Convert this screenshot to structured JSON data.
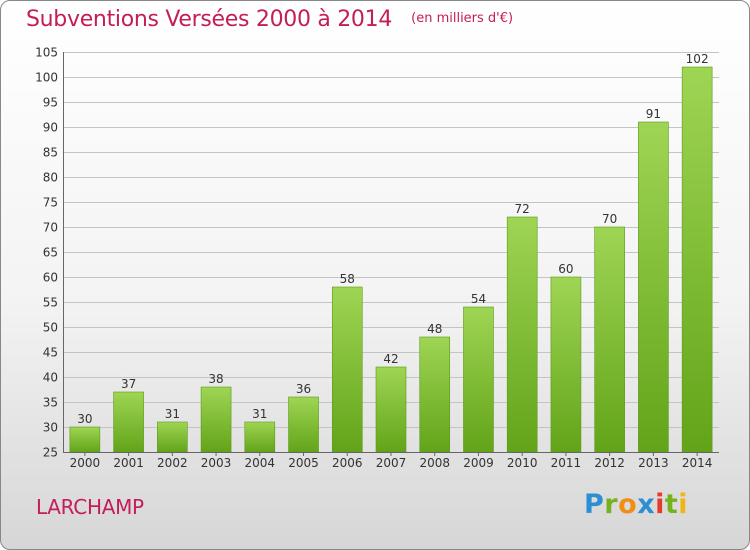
{
  "title": "Subventions Versées 2000 à 2014",
  "subtitle": "(en milliers d'€)",
  "commune": "LARCHAMP",
  "logo_text": "Proxiti",
  "colors": {
    "title": "#c41d5a",
    "bar_top": "#9fd554",
    "bar_bottom": "#62a419",
    "grid": "#bdbdbd",
    "axis": "#555555"
  },
  "chart_data": {
    "type": "bar",
    "title": "Subventions Versées 2000 à 2014",
    "subtitle": "(en milliers d'€)",
    "categories": [
      "2000",
      "2001",
      "2002",
      "2003",
      "2004",
      "2005",
      "2006",
      "2007",
      "2008",
      "2009",
      "2010",
      "2011",
      "2012",
      "2013",
      "2014"
    ],
    "values": [
      30,
      37,
      31,
      38,
      31,
      36,
      58,
      42,
      48,
      54,
      72,
      60,
      70,
      91,
      102
    ],
    "ylim": [
      25,
      105
    ],
    "yticks": [
      25,
      30,
      35,
      40,
      45,
      50,
      55,
      60,
      65,
      70,
      75,
      80,
      85,
      90,
      95,
      100,
      105
    ],
    "grid": true,
    "xlabel": "",
    "ylabel": ""
  }
}
